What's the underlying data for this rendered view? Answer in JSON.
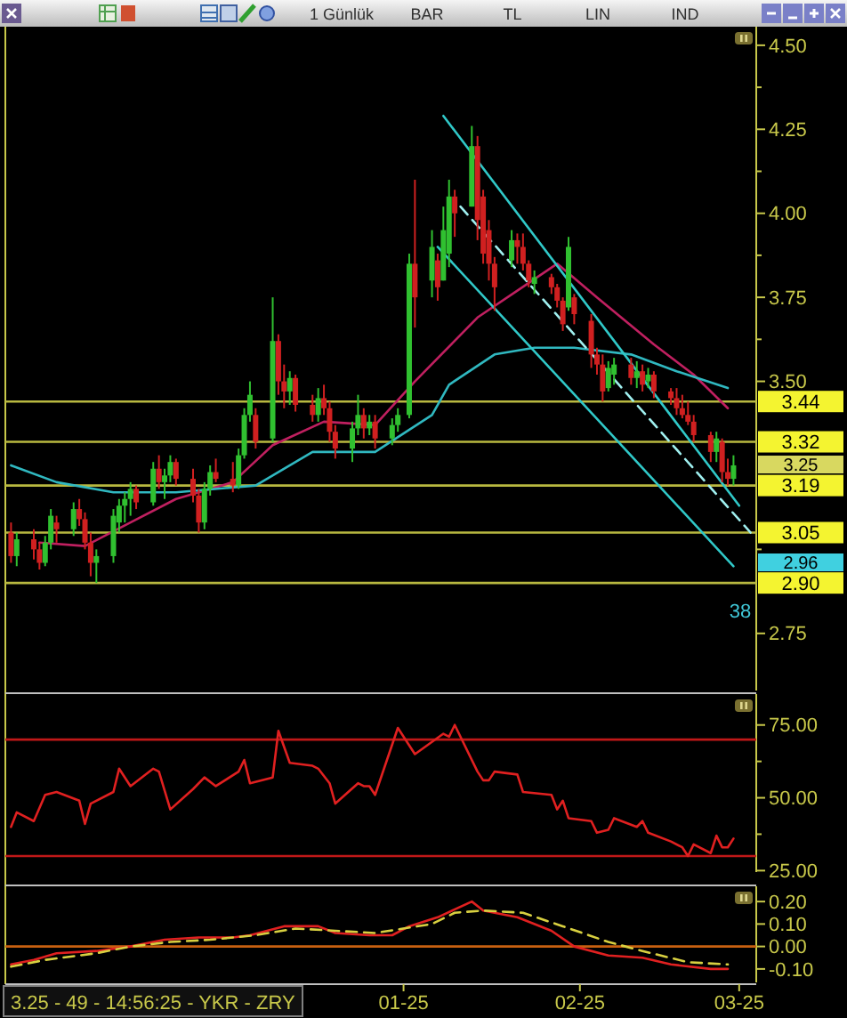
{
  "chart_data": [
    {
      "type": "candlestick",
      "tick_labels": "y",
      "xlim": [
        "2024-10-23",
        "2025-03-04"
      ],
      "ylim": [
        2.58,
        4.55
      ],
      "yticks": [
        {
          "value": 2.75,
          "label": "2.75"
        },
        {
          "value": 3.0,
          "label": null
        },
        {
          "value": 3.5,
          "label": "3.50"
        },
        {
          "value": 3.625,
          "label": null
        },
        {
          "value": 3.75,
          "label": "3.75"
        },
        {
          "value": 3.875,
          "label": null
        },
        {
          "value": 4.0,
          "label": "4.00"
        },
        {
          "value": 4.125,
          "label": null
        },
        {
          "value": 4.25,
          "label": "4.25"
        },
        {
          "value": 4.375,
          "label": null
        },
        {
          "value": 4.5,
          "label": "4.50"
        }
      ],
      "x": [
        "2024-10-24",
        "2024-10-25",
        "2024-10-28",
        "2024-10-29",
        "2024-10-30",
        "2024-10-31",
        "2024-11-01",
        "2024-11-04",
        "2024-11-05",
        "2024-11-06",
        "2024-11-07",
        "2024-11-08",
        "2024-11-11",
        "2024-11-12",
        "2024-11-13",
        "2024-11-14",
        "2024-11-15",
        "2024-11-18",
        "2024-11-19",
        "2024-11-20",
        "2024-11-21",
        "2024-11-22",
        "2024-11-25",
        "2024-11-26",
        "2024-11-27",
        "2024-11-28",
        "2024-11-29",
        "2024-12-02",
        "2024-12-03",
        "2024-12-04",
        "2024-12-05",
        "2024-12-06",
        "2024-12-09",
        "2024-12-10",
        "2024-12-11",
        "2024-12-12",
        "2024-12-13",
        "2024-12-16",
        "2024-12-17",
        "2024-12-18",
        "2024-12-19",
        "2024-12-20",
        "2024-12-23",
        "2024-12-24",
        "2024-12-25",
        "2024-12-26",
        "2024-12-27",
        "2024-12-30",
        "2024-12-31",
        "2025-01-02",
        "2025-01-03",
        "2025-01-06",
        "2025-01-07",
        "2025-01-08",
        "2025-01-09",
        "2025-01-10",
        "2025-01-13",
        "2025-01-14",
        "2025-01-15",
        "2025-01-16",
        "2025-01-17",
        "2025-01-20",
        "2025-01-21",
        "2025-01-22",
        "2025-01-23",
        "2025-01-24",
        "2025-01-27",
        "2025-01-28",
        "2025-01-29",
        "2025-01-30",
        "2025-01-31",
        "2025-02-03",
        "2025-02-04",
        "2025-02-05",
        "2025-02-06",
        "2025-02-07",
        "2025-02-10",
        "2025-02-11",
        "2025-02-12",
        "2025-02-13",
        "2025-02-14",
        "2025-02-17",
        "2025-02-18",
        "2025-02-19",
        "2025-02-20",
        "2025-02-21",
        "2025-02-24",
        "2025-02-25",
        "2025-02-26",
        "2025-02-27",
        "2025-02-28"
      ],
      "ohlc": [
        [
          3.05,
          3.08,
          2.96,
          2.98
        ],
        [
          2.98,
          3.05,
          2.95,
          3.03
        ],
        [
          3.03,
          3.06,
          2.97,
          3.0
        ],
        [
          3.0,
          3.02,
          2.94,
          2.96
        ],
        [
          2.96,
          3.04,
          2.95,
          3.02
        ],
        [
          3.02,
          3.12,
          3.0,
          3.1
        ],
        [
          3.08,
          3.1,
          3.02,
          3.06
        ],
        [
          3.06,
          3.14,
          3.04,
          3.12
        ],
        [
          3.12,
          3.15,
          3.07,
          3.09
        ],
        [
          3.09,
          3.11,
          3.0,
          3.02
        ],
        [
          3.02,
          3.05,
          2.92,
          2.96
        ],
        [
          2.96,
          3.0,
          2.9,
          2.98
        ],
        [
          2.98,
          3.12,
          2.96,
          3.1
        ],
        [
          3.08,
          3.15,
          3.05,
          3.13
        ],
        [
          3.13,
          3.17,
          3.08,
          3.15
        ],
        [
          3.15,
          3.2,
          3.1,
          3.18
        ],
        [
          3.18,
          3.19,
          3.12,
          3.14
        ],
        [
          3.14,
          3.26,
          3.13,
          3.24
        ],
        [
          3.24,
          3.28,
          3.18,
          3.2
        ],
        [
          3.2,
          3.24,
          3.15,
          3.22
        ],
        [
          3.22,
          3.28,
          3.2,
          3.26
        ],
        [
          3.26,
          3.27,
          3.19,
          3.21
        ],
        [
          3.21,
          3.24,
          3.14,
          3.16
        ],
        [
          3.16,
          3.18,
          3.05,
          3.08
        ],
        [
          3.08,
          3.2,
          3.06,
          3.18
        ],
        [
          3.18,
          3.25,
          3.16,
          3.23
        ],
        [
          3.23,
          3.27,
          3.2,
          3.21
        ],
        [
          3.21,
          3.26,
          3.17,
          3.19
        ],
        [
          3.19,
          3.3,
          3.18,
          3.28
        ],
        [
          3.28,
          3.42,
          3.27,
          3.4
        ],
        [
          3.4,
          3.5,
          3.38,
          3.46
        ],
        [
          3.4,
          3.42,
          3.3,
          3.32
        ],
        [
          3.33,
          3.75,
          3.32,
          3.62
        ],
        [
          3.62,
          3.64,
          3.46,
          3.5
        ],
        [
          3.5,
          3.55,
          3.42,
          3.47
        ],
        [
          3.47,
          3.53,
          3.43,
          3.51
        ],
        [
          3.51,
          3.52,
          3.41,
          3.43
        ],
        [
          3.43,
          3.46,
          3.38,
          3.4
        ],
        [
          3.4,
          3.48,
          3.38,
          3.45
        ],
        [
          3.45,
          3.49,
          3.4,
          3.42
        ],
        [
          3.42,
          3.44,
          3.32,
          3.35
        ],
        [
          3.35,
          3.37,
          3.27,
          3.3
        ],
        [
          3.3,
          3.38,
          3.26,
          3.36
        ],
        [
          3.36,
          3.46,
          3.34,
          3.4
        ],
        [
          3.4,
          3.42,
          3.33,
          3.36
        ],
        [
          3.36,
          3.4,
          3.34,
          3.38
        ],
        [
          3.38,
          3.4,
          3.3,
          3.33
        ],
        [
          3.33,
          3.39,
          3.31,
          3.37
        ],
        [
          3.37,
          3.42,
          3.35,
          3.4
        ],
        [
          3.4,
          3.88,
          3.39,
          3.85
        ],
        [
          3.85,
          4.1,
          3.66,
          3.75
        ],
        [
          3.8,
          3.95,
          3.75,
          3.9
        ],
        [
          3.86,
          3.88,
          3.74,
          3.78
        ],
        [
          3.8,
          4.02,
          3.8,
          3.95
        ],
        [
          3.88,
          4.1,
          3.84,
          4.05
        ],
        [
          4.05,
          4.07,
          3.93,
          4.0
        ],
        [
          4.02,
          4.26,
          4.02,
          4.2
        ],
        [
          4.2,
          4.23,
          3.92,
          3.98
        ],
        [
          4.05,
          4.07,
          3.85,
          3.88
        ],
        [
          3.95,
          3.98,
          3.8,
          3.85
        ],
        [
          3.85,
          3.87,
          3.71,
          3.78
        ],
        [
          3.86,
          3.95,
          3.84,
          3.92
        ],
        [
          3.92,
          3.94,
          3.85,
          3.9
        ],
        [
          3.9,
          3.94,
          3.83,
          3.85
        ],
        [
          3.85,
          3.86,
          3.78,
          3.8
        ],
        [
          3.79,
          3.83,
          3.76,
          3.81
        ],
        [
          3.81,
          3.82,
          3.76,
          3.78
        ],
        [
          3.78,
          3.79,
          3.72,
          3.74
        ],
        [
          3.74,
          3.75,
          3.65,
          3.67
        ],
        [
          3.72,
          3.93,
          3.71,
          3.9
        ],
        [
          3.75,
          3.76,
          3.67,
          3.7
        ],
        [
          3.68,
          3.7,
          3.54,
          3.58
        ],
        [
          3.58,
          3.6,
          3.52,
          3.55
        ],
        [
          3.55,
          3.58,
          3.44,
          3.47
        ],
        [
          3.48,
          3.56,
          3.47,
          3.54
        ],
        [
          3.52,
          3.57,
          3.49,
          3.55
        ],
        [
          3.55,
          3.57,
          3.49,
          3.51
        ],
        [
          3.51,
          3.56,
          3.48,
          3.53
        ],
        [
          3.53,
          3.55,
          3.47,
          3.49
        ],
        [
          3.5,
          3.54,
          3.48,
          3.52
        ],
        [
          3.52,
          3.53,
          3.45,
          3.47
        ],
        [
          3.47,
          3.48,
          3.43,
          3.45
        ],
        [
          3.45,
          3.48,
          3.4,
          3.42
        ],
        [
          3.42,
          3.46,
          3.39,
          3.4
        ],
        [
          3.4,
          3.44,
          3.37,
          3.38
        ],
        [
          3.38,
          3.4,
          3.32,
          3.34
        ],
        [
          3.34,
          3.35,
          3.26,
          3.29
        ],
        [
          3.29,
          3.35,
          3.26,
          3.33
        ],
        [
          3.32,
          3.33,
          3.2,
          3.23
        ],
        [
          3.23,
          3.27,
          3.19,
          3.21
        ],
        [
          3.21,
          3.28,
          3.19,
          3.25
        ]
      ],
      "colors": [
        "#d02020",
        "#30c030",
        "#d02020",
        "#d02020",
        "#30c030",
        "#30c030",
        "#d02020",
        "#30c030",
        "#d02020",
        "#d02020",
        "#d02020",
        "#30c030",
        "#30c030",
        "#30c030",
        "#30c030",
        "#30c030",
        "#d02020",
        "#30c030",
        "#d02020",
        "#30c030",
        "#30c030",
        "#d02020",
        "#d02020",
        "#d02020",
        "#30c030",
        "#30c030",
        "#d02020",
        "#d02020",
        "#30c030",
        "#30c030",
        "#30c030",
        "#d02020",
        "#30c030",
        "#d02020",
        "#d02020",
        "#30c030",
        "#d02020",
        "#d02020",
        "#30c030",
        "#d02020",
        "#d02020",
        "#d02020",
        "#30c030",
        "#30c030",
        "#d02020",
        "#30c030",
        "#d02020",
        "#30c030",
        "#30c030",
        "#30c030",
        "#d02020",
        "#30c030",
        "#d02020",
        "#30c030",
        "#30c030",
        "#d02020",
        "#30c030",
        "#d02020",
        "#d02020",
        "#d02020",
        "#d02020",
        "#30c030",
        "#d02020",
        "#d02020",
        "#d02020",
        "#30c030",
        "#d02020",
        "#d02020",
        "#d02020",
        "#30c030",
        "#d02020",
        "#d02020",
        "#d02020",
        "#d02020",
        "#30c030",
        "#30c030",
        "#d02020",
        "#30c030",
        "#d02020",
        "#30c030",
        "#d02020",
        "#d02020",
        "#d02020",
        "#d02020",
        "#d02020",
        "#d02020",
        "#d02020",
        "#30c030",
        "#d02020",
        "#d02020",
        "#30c030"
      ],
      "series": [
        {
          "type": "line",
          "color": "#c02060",
          "x": [
            "2024-10-29",
            "2024-11-06",
            "2024-11-14",
            "2024-11-22",
            "2024-12-02",
            "2024-12-09",
            "2024-12-18",
            "2024-12-27",
            "2025-01-03",
            "2025-01-14",
            "2025-01-21",
            "2025-01-28",
            "2025-02-04",
            "2025-02-14",
            "2025-02-21",
            "2025-02-27"
          ],
          "values": [
            3.02,
            3.01,
            3.08,
            3.15,
            3.2,
            3.31,
            3.38,
            3.37,
            3.5,
            3.69,
            3.77,
            3.85,
            3.75,
            3.61,
            3.52,
            3.42
          ]
        },
        {
          "type": "line",
          "color": "#30b8c0",
          "x": [
            "2024-10-24",
            "2024-11-01",
            "2024-11-11",
            "2024-11-22",
            "2024-12-06",
            "2024-12-16",
            "2024-12-27",
            "2025-01-06",
            "2025-01-09",
            "2025-01-17",
            "2025-01-24",
            "2025-01-31",
            "2025-02-10",
            "2025-02-18",
            "2025-02-27"
          ],
          "values": [
            3.25,
            3.2,
            3.17,
            3.17,
            3.19,
            3.29,
            3.29,
            3.4,
            3.49,
            3.58,
            3.6,
            3.6,
            3.58,
            3.53,
            3.48
          ]
        },
        {
          "type": "line",
          "color": "#30c8c8",
          "x": [
            "2025-01-08",
            "2025-03-01"
          ],
          "values": [
            4.29,
            3.13
          ]
        },
        {
          "type": "line",
          "color": "#30c8c8",
          "x": [
            "2025-01-07",
            "2025-02-28"
          ],
          "values": [
            3.9,
            2.95
          ]
        },
        {
          "type": "line",
          "color": "#a0f0f0",
          "line_style": "dashed",
          "x": [
            "2025-01-11",
            "2025-03-03"
          ],
          "values": [
            4.02,
            3.05
          ]
        }
      ],
      "ref_lines": [
        {
          "axis": "y",
          "value": 3.44,
          "label": "3.44",
          "color": "#b8b840"
        },
        {
          "axis": "y",
          "value": 3.32,
          "label": "3.32",
          "color": "#b8b840"
        },
        {
          "axis": "y",
          "value": 3.19,
          "label": "3.19",
          "color": "#b8b840"
        },
        {
          "axis": "y",
          "value": 3.05,
          "label": "3.05",
          "color": "#b8b840"
        },
        {
          "axis": "y",
          "value": 2.9,
          "label": "2.90",
          "color": "#b8b840"
        }
      ],
      "annotations": [
        "1 Günlük",
        "BAR",
        "TL",
        "LIN",
        "IND",
        "3.25",
        "2.96",
        "38"
      ]
    },
    {
      "type": "line",
      "tick_labels": "y",
      "xlim": [
        "2024-10-23",
        "2025-03-04"
      ],
      "ylim": [
        24.5,
        85
      ],
      "yticks": [
        {
          "value": 25,
          "label": "25.00"
        },
        {
          "value": 37.5,
          "label": null
        },
        {
          "value": 50,
          "label": "50.00"
        },
        {
          "value": 62.5,
          "label": null
        },
        {
          "value": 75,
          "label": "75.00"
        }
      ],
      "series": [
        {
          "color": "#e02020",
          "x": [
            "2024-10-24",
            "2024-10-25",
            "2024-10-28",
            "2024-10-30",
            "2024-11-01",
            "2024-11-05",
            "2024-11-06",
            "2024-11-07",
            "2024-11-11",
            "2024-11-12",
            "2024-11-14",
            "2024-11-18",
            "2024-11-19",
            "2024-11-21",
            "2024-11-25",
            "2024-11-27",
            "2024-11-29",
            "2024-12-03",
            "2024-12-04",
            "2024-12-05",
            "2024-12-09",
            "2024-12-10",
            "2024-12-12",
            "2024-12-16",
            "2024-12-17",
            "2024-12-19",
            "2024-12-20",
            "2024-12-24",
            "2024-12-25",
            "2024-12-26",
            "2024-12-27",
            "2024-12-31",
            "2025-01-03",
            "2025-01-08",
            "2025-01-09",
            "2025-01-10",
            "2025-01-14",
            "2025-01-15",
            "2025-01-16",
            "2025-01-17",
            "2025-01-21",
            "2025-01-22",
            "2025-01-27",
            "2025-01-28",
            "2025-01-29",
            "2025-01-30",
            "2025-02-03",
            "2025-02-04",
            "2025-02-06",
            "2025-02-07",
            "2025-02-11",
            "2025-02-12",
            "2025-02-13",
            "2025-02-17",
            "2025-02-19",
            "2025-02-20",
            "2025-02-21",
            "2025-02-24",
            "2025-02-25",
            "2025-02-26",
            "2025-02-27",
            "2025-02-28"
          ],
          "values": [
            40,
            45,
            42,
            51,
            52,
            49,
            41,
            48,
            52,
            60,
            54,
            60,
            59,
            46,
            53,
            57,
            54,
            59,
            63,
            55,
            57,
            73,
            62,
            61,
            60,
            55,
            48,
            55,
            54,
            54,
            51,
            74,
            65,
            72,
            71,
            75,
            59,
            56,
            56,
            59,
            58,
            52,
            51,
            46,
            49,
            43,
            42,
            38,
            39,
            43,
            40,
            42,
            38,
            35,
            33,
            30,
            34,
            31,
            37,
            33,
            33,
            36
          ]
        }
      ],
      "ref_lines": [
        {
          "axis": "y",
          "value": 70,
          "color": "#c01818"
        },
        {
          "axis": "y",
          "value": 30,
          "color": "#c01818"
        }
      ]
    },
    {
      "type": "line",
      "xlim": [
        "2024-10-23",
        "2025-03-04"
      ],
      "xticks": [
        {
          "value": "2025-01-01",
          "label": "01-25"
        },
        {
          "value": "2025-02-01",
          "label": "02-25"
        },
        {
          "value": "2025-03-01",
          "label": "03-25"
        }
      ],
      "ylim": [
        -0.16,
        0.26
      ],
      "yticks": [
        {
          "value": -0.1,
          "label": "-0.10"
        },
        {
          "value": 0,
          "label": "0.00"
        },
        {
          "value": 0.1,
          "label": "0.10"
        },
        {
          "value": 0.2,
          "label": "0.20"
        }
      ],
      "series": [
        {
          "color": "#e02020",
          "x": [
            "2024-10-24",
            "2024-10-28",
            "2024-11-01",
            "2024-11-08",
            "2024-11-14",
            "2024-11-20",
            "2024-11-26",
            "2024-12-02",
            "2024-12-05",
            "2024-12-11",
            "2024-12-17",
            "2024-12-20",
            "2024-12-26",
            "2024-12-30",
            "2025-01-02",
            "2025-01-07",
            "2025-01-13",
            "2025-01-15",
            "2025-01-21",
            "2025-01-27",
            "2025-01-31",
            "2025-02-06",
            "2025-02-12",
            "2025-02-17",
            "2025-02-24",
            "2025-02-27"
          ],
          "values": [
            -0.08,
            -0.06,
            -0.03,
            -0.02,
            0.0,
            0.03,
            0.04,
            0.04,
            0.05,
            0.09,
            0.09,
            0.06,
            0.05,
            0.05,
            0.09,
            0.13,
            0.2,
            0.16,
            0.13,
            0.07,
            0.0,
            -0.04,
            -0.05,
            -0.08,
            -0.1,
            -0.1
          ]
        },
        {
          "color": "#d8d040",
          "line_style": "dashed",
          "x": [
            "2024-10-24",
            "2024-10-30",
            "2024-11-08",
            "2024-11-14",
            "2024-11-21",
            "2024-11-28",
            "2024-12-06",
            "2024-12-13",
            "2024-12-20",
            "2024-12-27",
            "2025-01-06",
            "2025-01-10",
            "2025-01-15",
            "2025-01-22",
            "2025-01-29",
            "2025-02-06",
            "2025-02-12",
            "2025-02-20",
            "2025-02-27"
          ],
          "values": [
            -0.09,
            -0.06,
            -0.03,
            0.0,
            0.02,
            0.03,
            0.05,
            0.08,
            0.07,
            0.06,
            0.1,
            0.15,
            0.16,
            0.15,
            0.09,
            0.02,
            -0.02,
            -0.07,
            -0.08
          ]
        }
      ],
      "ref_lines": [
        {
          "axis": "y",
          "value": 0,
          "color": "#c86010"
        }
      ],
      "annotations": [
        "3.25 - 49 - 14:56:25 - YKR - ZRY"
      ]
    }
  ]
}
